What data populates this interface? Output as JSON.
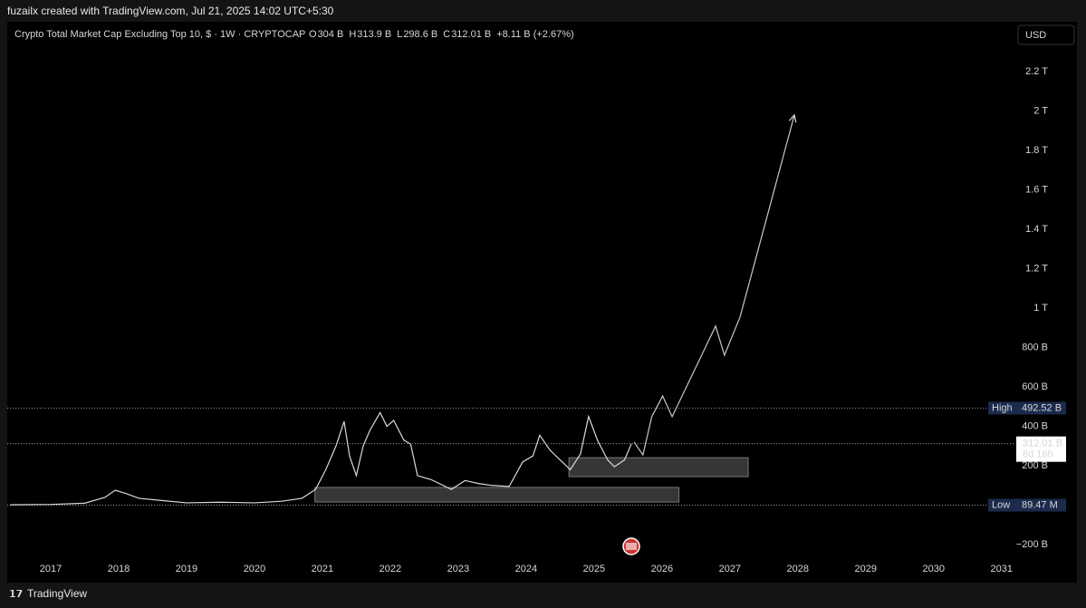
{
  "header": {
    "credit": "fuzailx created with TradingView.com, Jul 21, 2025 14:02 UTC+5:30",
    "brand": "TradingView",
    "currency": "USD"
  },
  "chart_data": {
    "type": "line",
    "title": "Crypto Total Market Cap Excluding Top 10, $ · 1W · CRYPTOCAP",
    "ohlc": {
      "open_label": "O",
      "open": "304 B",
      "high_label": "H",
      "high": "313.9 B",
      "low_label": "L",
      "low": "298.6 B",
      "close_label": "C",
      "close": "312.01 B",
      "change": "+8.11 B (+2.67%)"
    },
    "color": "#d9d9d9",
    "x": [
      2016.4,
      2017.0,
      2017.5,
      2017.8,
      2017.95,
      2018.1,
      2018.3,
      2018.6,
      2019.0,
      2019.5,
      2020.0,
      2020.4,
      2020.7,
      2020.9,
      2021.05,
      2021.2,
      2021.32,
      2021.4,
      2021.5,
      2021.6,
      2021.7,
      2021.85,
      2021.95,
      2022.05,
      2022.2,
      2022.3,
      2022.4,
      2022.6,
      2022.9,
      2023.1,
      2023.3,
      2023.5,
      2023.75,
      2023.95,
      2024.1,
      2024.2,
      2024.35,
      2024.5,
      2024.65,
      2024.8,
      2024.92,
      2025.05,
      2025.2,
      2025.3,
      2025.45,
      2025.55
    ],
    "values": [
      2,
      4,
      10,
      40,
      76,
      60,
      35,
      25,
      12,
      15,
      12,
      20,
      35,
      80,
      180,
      300,
      425,
      250,
      150,
      300,
      380,
      470,
      400,
      430,
      330,
      310,
      150,
      130,
      80,
      125,
      110,
      100,
      95,
      220,
      250,
      355,
      280,
      230,
      180,
      260,
      450,
      330,
      230,
      195,
      230,
      312
    ],
    "projection": {
      "color": "#c8c8c8",
      "x": [
        2025.59,
        2025.72,
        2025.85,
        2026.01,
        2026.15,
        2026.79,
        2026.92,
        2027.15,
        2027.95
      ],
      "values": [
        320,
        255,
        449,
        554,
        449,
        909,
        761,
        955,
        1980
      ]
    },
    "zones": [
      {
        "x": [
          2020.89,
          2026.25
        ],
        "y": [
          16,
          90
        ]
      },
      {
        "x": [
          2024.63,
          2027.27
        ],
        "y": [
          145,
          241
        ]
      }
    ],
    "markers": [
      {
        "name": "High",
        "value": 492.52,
        "label": "492.52 B"
      },
      {
        "value": 312.01,
        "label": "312.01 B",
        "countdown": "6d 16h"
      },
      {
        "name": "Low",
        "value": 0.08947,
        "label": "89.47 M"
      }
    ],
    "xlim": [
      2016.36,
      2031.19
    ],
    "xticks": [
      2017,
      2018,
      2019,
      2020,
      2021,
      2022,
      2023,
      2024,
      2025,
      2026,
      2027,
      2028,
      2029,
      2030,
      2031
    ],
    "ylim": [
      -278,
      2453
    ],
    "yticks": [
      {
        "value": 2200,
        "label": "2.2 T"
      },
      {
        "value": 2000,
        "label": "2 T"
      },
      {
        "value": 1800,
        "label": "1.8 T"
      },
      {
        "value": 1600,
        "label": "1.6 T"
      },
      {
        "value": 1400,
        "label": "1.4 T"
      },
      {
        "value": 1200,
        "label": "1.2 T"
      },
      {
        "value": 1000,
        "label": "1 T"
      },
      {
        "value": 800,
        "label": "800 B"
      },
      {
        "value": 600,
        "label": "600 B"
      },
      {
        "value": 400,
        "label": "400 B"
      },
      {
        "value": 200,
        "label": "200 B"
      },
      {
        "value": -200,
        "label": "−200 B"
      }
    ],
    "grid": false
  }
}
